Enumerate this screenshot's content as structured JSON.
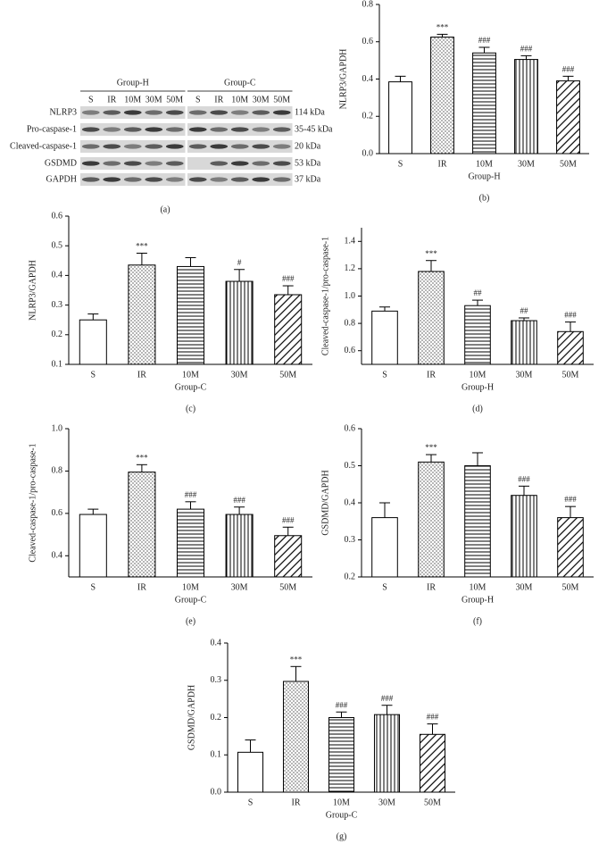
{
  "blot": {
    "groups": [
      "Group-H",
      "Group-C"
    ],
    "lanes": [
      "S",
      "IR",
      "10M",
      "30M",
      "50M"
    ],
    "rows": [
      {
        "name": "NLRP3",
        "size": "114 kDa"
      },
      {
        "name": "Pro-caspase-1",
        "size": "35-45 kDa"
      },
      {
        "name": "Cleaved-caspase-1",
        "size": "20 kDa"
      },
      {
        "name": "GSDMD",
        "size": "53 kDa"
      },
      {
        "name": "GAPDH",
        "size": "37 kDa"
      }
    ],
    "caption": "(a)"
  },
  "chart_data": [
    {
      "type": "bar",
      "caption": "(b)",
      "ylabel": "NLRP3/GAPDH",
      "xlabel": "Group-H",
      "categories": [
        "S",
        "IR",
        "10M",
        "30M",
        "50M"
      ],
      "values": [
        0.385,
        0.625,
        0.54,
        0.505,
        0.39
      ],
      "errors": [
        0.03,
        0.015,
        0.03,
        0.02,
        0.025
      ],
      "annotations": [
        null,
        "***",
        "###",
        "###",
        "###"
      ],
      "ylim": [
        0,
        0.8
      ],
      "yticks": [
        {
          "value": 0,
          "label": "0.0"
        },
        0.2,
        0.4,
        0.6,
        0.8
      ],
      "color": "#000000"
    },
    {
      "type": "bar",
      "caption": "(c)",
      "ylabel": "NLRP3/GAPDH",
      "xlabel": "Group-C",
      "categories": [
        "S",
        "IR",
        "10M",
        "30M",
        "50M"
      ],
      "values": [
        0.25,
        0.435,
        0.43,
        0.38,
        0.335
      ],
      "errors": [
        0.02,
        0.04,
        0.03,
        0.04,
        0.03
      ],
      "annotations": [
        null,
        "***",
        null,
        "#",
        "###"
      ],
      "ylim": [
        0.1,
        0.6
      ],
      "yticks": [
        0.1,
        0.2,
        0.3,
        0.4,
        0.5,
        0.6
      ],
      "color": "#000000"
    },
    {
      "type": "bar",
      "caption": "(d)",
      "ylabel": "Cleaved-caspase-1/pro-caspase-1",
      "xlabel": "Group-H",
      "categories": [
        "S",
        "IR",
        "10M",
        "30M",
        "50M"
      ],
      "values": [
        0.89,
        1.18,
        0.93,
        0.82,
        0.74
      ],
      "errors": [
        0.03,
        0.08,
        0.04,
        0.02,
        0.07
      ],
      "annotations": [
        null,
        "***",
        "##",
        "##",
        "###"
      ],
      "ylim": [
        0.5,
        1.5
      ],
      "yticks": [
        0.6,
        0.8,
        {
          "value": 1,
          "label": "1.0"
        },
        1.2,
        1.4
      ],
      "color": "#000000"
    },
    {
      "type": "bar",
      "caption": "(e)",
      "ylabel": "Cleaved-caspase-1/pro-caspase-1",
      "xlabel": "Group-C",
      "categories": [
        "S",
        "IR",
        "10M",
        "30M",
        "50M"
      ],
      "values": [
        0.595,
        0.795,
        0.62,
        0.595,
        0.495
      ],
      "errors": [
        0.025,
        0.035,
        0.035,
        0.035,
        0.04
      ],
      "annotations": [
        null,
        "***",
        "###",
        "###",
        "###"
      ],
      "ylim": [
        0.3,
        1
      ],
      "yticks": [
        0.4,
        0.6,
        0.8,
        {
          "value": 1,
          "label": "1.0"
        }
      ],
      "color": "#000000"
    },
    {
      "type": "bar",
      "caption": "(f)",
      "ylabel": "GSDMD/GAPDH",
      "xlabel": "Group-H",
      "categories": [
        "S",
        "IR",
        "10M",
        "30M",
        "50M"
      ],
      "values": [
        0.36,
        0.51,
        0.5,
        0.42,
        0.36
      ],
      "errors": [
        0.04,
        0.02,
        0.035,
        0.025,
        0.03
      ],
      "annotations": [
        null,
        "***",
        null,
        "###",
        "###"
      ],
      "ylim": [
        0.2,
        0.6
      ],
      "yticks": [
        0.2,
        0.3,
        0.4,
        0.5,
        0.6
      ],
      "color": "#000000"
    },
    {
      "type": "bar",
      "caption": "(g)",
      "ylabel": "GSDMD/GAPDH",
      "xlabel": "Group-C",
      "categories": [
        "S",
        "IR",
        "10M",
        "30M",
        "50M"
      ],
      "values": [
        0.107,
        0.297,
        0.2,
        0.208,
        0.155
      ],
      "errors": [
        0.033,
        0.04,
        0.015,
        0.025,
        0.028
      ],
      "annotations": [
        null,
        "***",
        "###",
        "###",
        "###"
      ],
      "ylim": [
        0,
        0.4
      ],
      "yticks": [
        {
          "value": 0,
          "label": "0.0"
        },
        0.1,
        0.2,
        0.3,
        0.4
      ],
      "color": "#000000"
    }
  ]
}
